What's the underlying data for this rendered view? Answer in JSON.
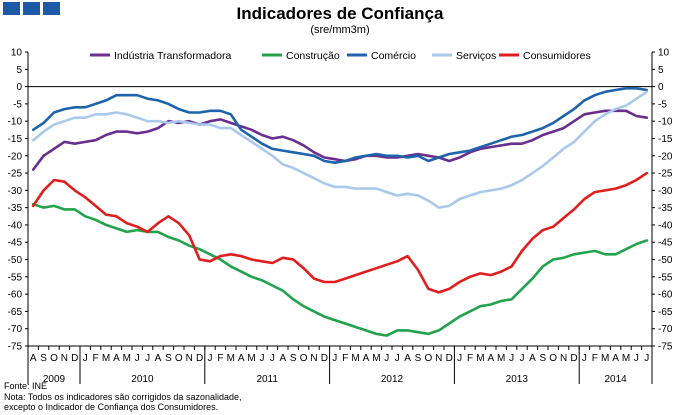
{
  "header": {
    "title": "Indicadores de Confiança",
    "subtitle": "(sre/mm3m)"
  },
  "footer": {
    "source": "Fonte: INE",
    "note_line1": "Nota: Todos os indicadores são corrigidos da sazonalidade,",
    "note_line2": "excepto o Indicador de Confiança dos Consumidores."
  },
  "chart_data": {
    "type": "line",
    "title": "Indicadores de Confiança",
    "subtitle": "(sre/mm3m)",
    "xlabel": "",
    "ylabel": "",
    "ylim": [
      -75,
      10
    ],
    "yticks": [
      10,
      5,
      0,
      -5,
      -10,
      -15,
      -20,
      -25,
      -30,
      -35,
      -40,
      -45,
      -50,
      -55,
      -60,
      -65,
      -70,
      -75
    ],
    "grid": false,
    "legend_position": "top",
    "x": [
      "A",
      "S",
      "O",
      "N",
      "D",
      "J",
      "F",
      "M",
      "A",
      "M",
      "J",
      "J",
      "A",
      "S",
      "O",
      "N",
      "D",
      "J",
      "F",
      "M",
      "A",
      "M",
      "J",
      "J",
      "A",
      "S",
      "O",
      "N",
      "D",
      "J",
      "F",
      "M",
      "A",
      "M",
      "J",
      "J",
      "A",
      "S",
      "O",
      "N",
      "D",
      "J",
      "F",
      "M",
      "A",
      "M",
      "J",
      "J",
      "A",
      "S",
      "O",
      "N",
      "D",
      "J",
      "F",
      "M",
      "A",
      "M",
      "J",
      "J"
    ],
    "years": [
      {
        "label": "2009",
        "start": 0,
        "end": 4
      },
      {
        "label": "2010",
        "start": 5,
        "end": 16
      },
      {
        "label": "2011",
        "start": 17,
        "end": 28
      },
      {
        "label": "2012",
        "start": 29,
        "end": 40
      },
      {
        "label": "2013",
        "start": 41,
        "end": 52
      },
      {
        "label": "2014",
        "start": 53,
        "end": 59
      }
    ],
    "series": [
      {
        "name": "Indústria Transformadora",
        "color": "#6a2e8e",
        "values": [
          -24,
          -20,
          -18,
          -16,
          -16.5,
          -16,
          -15.5,
          -14,
          -13,
          -13,
          -13.5,
          -13,
          -12,
          -10,
          -10.5,
          -10,
          -11,
          -10,
          -9.5,
          -10.5,
          -11.5,
          -12.5,
          -14,
          -15,
          -14.5,
          -15.5,
          -17,
          -19,
          -20.5,
          -21,
          -21.5,
          -21,
          -20,
          -20,
          -20.5,
          -20.5,
          -20,
          -19.5,
          -20,
          -20.5,
          -21.5,
          -20.5,
          -19,
          -18,
          -17.5,
          -17,
          -16.5,
          -16.5,
          -15.5,
          -14,
          -13,
          -12,
          -10,
          -8,
          -7.5,
          -7,
          -7,
          -7,
          -8.5,
          -9
        ]
      },
      {
        "name": "Construção",
        "color": "#22a24c",
        "values": [
          -34,
          -35,
          -34.5,
          -35.5,
          -35.5,
          -37.5,
          -38.5,
          -40,
          -41,
          -42,
          -41.5,
          -42,
          -42,
          -43.5,
          -44.5,
          -46,
          -47,
          -48.5,
          -50,
          -52,
          -53.5,
          -55,
          -56,
          -57.5,
          -59,
          -61.5,
          -63.5,
          -65,
          -66.5,
          -67.5,
          -68.5,
          -69.5,
          -70.5,
          -71.5,
          -72,
          -70.5,
          -70.5,
          -71,
          -71.5,
          -70.5,
          -68.5,
          -66.5,
          -65,
          -63.5,
          -63,
          -62,
          -61.5,
          -58.5,
          -55.5,
          -52,
          -50,
          -49.5,
          -48.5,
          -48,
          -47.5,
          -48.5,
          -48.5,
          -47,
          -45.5,
          -44.5
        ]
      },
      {
        "name": "Comércio",
        "color": "#1e63ac",
        "values": [
          -12.5,
          -10.5,
          -7.5,
          -6.5,
          -6,
          -6,
          -5,
          -4,
          -2.5,
          -2.5,
          -2.5,
          -3.5,
          -4,
          -5,
          -6.5,
          -7.5,
          -7.5,
          -7,
          -7,
          -8,
          -12.5,
          -14.5,
          -16.5,
          -18,
          -18.5,
          -19,
          -19.5,
          -20,
          -21.5,
          -22,
          -21.5,
          -20.5,
          -20,
          -19.5,
          -20,
          -20,
          -20.5,
          -20,
          -21.5,
          -20.5,
          -19.5,
          -19,
          -18.5,
          -17.5,
          -16.5,
          -15.5,
          -14.5,
          -14,
          -13,
          -12,
          -10.5,
          -8.5,
          -6.5,
          -4,
          -2.5,
          -1.5,
          -1,
          -0.5,
          -0.5,
          -1
        ]
      },
      {
        "name": "Serviços",
        "color": "#a9c9ec",
        "values": [
          -15.5,
          -13,
          -11,
          -10,
          -9,
          -9,
          -8,
          -8,
          -7.5,
          -8,
          -9,
          -10,
          -10,
          -10.5,
          -10,
          -10.5,
          -11,
          -11,
          -12,
          -12,
          -14,
          -16,
          -18,
          -20,
          -22.5,
          -23.5,
          -25,
          -26.5,
          -28,
          -29,
          -29,
          -29.5,
          -29.5,
          -29.5,
          -30.5,
          -31.5,
          -31,
          -31.5,
          -33,
          -35,
          -34.5,
          -32.5,
          -31.5,
          -30.5,
          -30,
          -29.5,
          -28.5,
          -27,
          -25,
          -23,
          -20.5,
          -18,
          -16,
          -13,
          -10,
          -8,
          -6.5,
          -5.5,
          -3.5,
          -1.5
        ]
      },
      {
        "name": "Consumidores",
        "color": "#e01e1e",
        "values": [
          -34.5,
          -30,
          -27,
          -27.5,
          -30,
          -32,
          -34.5,
          -37,
          -37.5,
          -39.5,
          -40.5,
          -42,
          -39.5,
          -37.5,
          -39.5,
          -43,
          -50,
          -50.5,
          -49,
          -48.5,
          -49,
          -50,
          -50.5,
          -51,
          -49.5,
          -50,
          -52.5,
          -55.5,
          -56.5,
          -56.5,
          -55.5,
          -54.5,
          -53.5,
          -52.5,
          -51.5,
          -50.5,
          -49,
          -53,
          -58.5,
          -59.5,
          -58.5,
          -56.5,
          -55,
          -54,
          -54.5,
          -53.5,
          -52,
          -47.5,
          -44,
          -41.5,
          -40.5,
          -38,
          -35.5,
          -32.5,
          -30.5,
          -30,
          -29.5,
          -28.5,
          -27,
          -25
        ]
      }
    ]
  }
}
